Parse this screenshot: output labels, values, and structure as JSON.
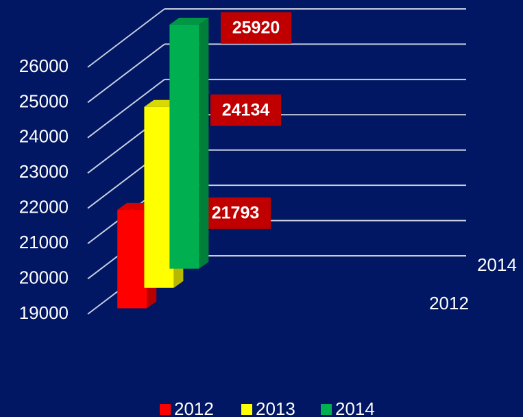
{
  "chart_data": {
    "type": "bar3d",
    "series": [
      {
        "name": "2012",
        "color": "#ff0000",
        "values": [
          21793
        ]
      },
      {
        "name": "2013",
        "color": "#ffff00",
        "values": [
          24134
        ]
      },
      {
        "name": "2014",
        "color": "#00b050",
        "values": [
          25920
        ]
      }
    ],
    "ylim": [
      19000,
      26000
    ],
    "yticks": [
      19000,
      20000,
      21000,
      22000,
      23000,
      24000,
      25000,
      26000
    ],
    "grid": true,
    "legend": "bottom"
  }
}
